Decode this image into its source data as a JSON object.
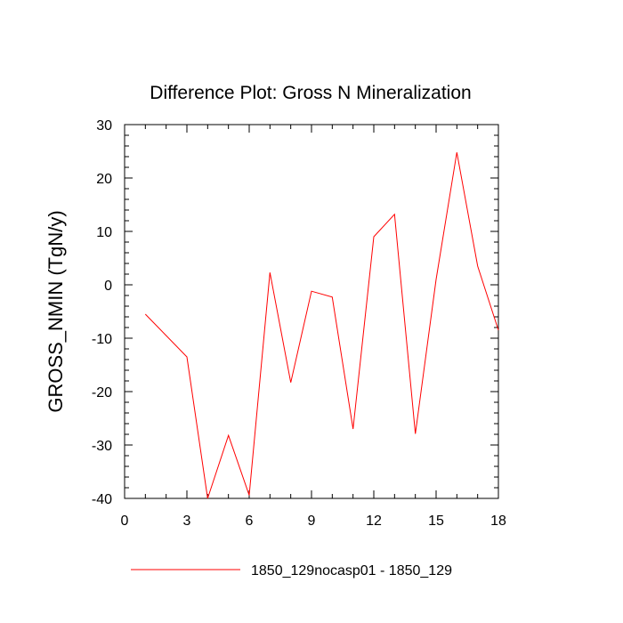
{
  "chart_data": {
    "type": "line",
    "title": "Difference Plot: Gross N Mineralization",
    "xlabel": "",
    "ylabel": "GROSS_NMIN  (TgN/y)",
    "xlim": [
      0,
      18
    ],
    "ylim": [
      -40,
      30
    ],
    "xticks": [
      0,
      3,
      6,
      9,
      12,
      15,
      18
    ],
    "xtick_labels": [
      "0",
      "3",
      "6",
      "9",
      "12",
      "15",
      "18"
    ],
    "yticks": [
      -40,
      -30,
      -20,
      -10,
      0,
      10,
      20,
      30
    ],
    "ytick_labels": [
      "-40",
      "-30",
      "-20",
      "-10",
      "0",
      "10",
      "20",
      "30"
    ],
    "grid": false,
    "legend_position": "bottom",
    "series": [
      {
        "name": "1850_129nocasp01 - 1850_129",
        "color": "#ff0000",
        "x": [
          1,
          3,
          4,
          5,
          6,
          7,
          8,
          9,
          10,
          11,
          12,
          13,
          14,
          15,
          16,
          17,
          18
        ],
        "y": [
          -5.5,
          -13.5,
          -40,
          -28.2,
          -39.4,
          2.3,
          -18.3,
          -1.2,
          -2.3,
          -27,
          9,
          13.2,
          -27.9,
          1,
          24.8,
          3.5,
          -8.5
        ]
      }
    ]
  }
}
